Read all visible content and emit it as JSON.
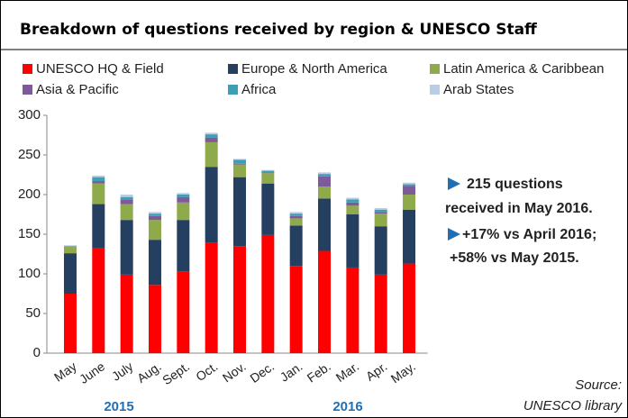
{
  "chart_data": {
    "type": "stacked_bar",
    "title": "Breakdown of questions received by region & UNESCO Staff",
    "categories": [
      "May",
      "June",
      "July",
      "Aug.",
      "Sept.",
      "Oct.",
      "Nov.",
      "Dec.",
      "Jan.",
      "Feb.",
      "Mar.",
      "Apr.",
      "May."
    ],
    "year_labels": [
      "2015",
      "2016"
    ],
    "series": [
      {
        "name": "UNESCO HQ & Field",
        "color": "#ff0000",
        "values": [
          75,
          132,
          99,
          86,
          103,
          139,
          135,
          149,
          110,
          129,
          108,
          99,
          113
        ]
      },
      {
        "name": "Europe & North America",
        "color": "#243f60",
        "values": [
          51,
          56,
          69,
          57,
          65,
          96,
          87,
          65,
          51,
          66,
          67,
          61,
          68
        ]
      },
      {
        "name": "Latin America & Caribbean",
        "color": "#8faa4a",
        "values": [
          8,
          26,
          20,
          25,
          22,
          31,
          16,
          13,
          9,
          15,
          11,
          16,
          19
        ]
      },
      {
        "name": "Asia & Pacific",
        "color": "#7d5a9a",
        "values": [
          0,
          3,
          6,
          5,
          7,
          6,
          1,
          1,
          3,
          13,
          4,
          2,
          11
        ]
      },
      {
        "name": "Africa",
        "color": "#3c9fb5",
        "values": [
          1,
          5,
          3,
          3,
          3,
          4,
          5,
          2,
          3,
          3,
          4,
          3,
          2
        ]
      },
      {
        "name": "Arab States",
        "color": "#b9cde5",
        "values": [
          1,
          2,
          3,
          2,
          2,
          2,
          1,
          1,
          2,
          2,
          2,
          2,
          2
        ]
      }
    ],
    "ylim": [
      0,
      300
    ],
    "yticks": [
      0,
      50,
      100,
      150,
      200,
      250,
      300
    ],
    "legend": "top",
    "annotations": [
      "215 questions",
      "received in May 2016.",
      "+17% vs April 2016;",
      "+58% vs May 2015."
    ],
    "source": [
      "Source:",
      "UNESCO library"
    ]
  }
}
